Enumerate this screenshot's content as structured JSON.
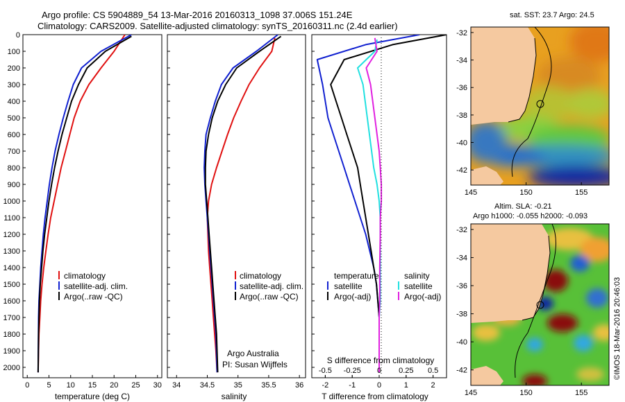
{
  "header": {
    "line1": "Argo profile: CS 5904889_54 13-Mar-2016 20160313_1098 37.006S 151.24E",
    "line2": "Climatology: CARS2009. Satellite-adjusted climatology: synTS_20160311.nc (2.4d earlier)"
  },
  "depth_axis": {
    "ticks": [
      "0",
      "100",
      "200",
      "300",
      "400",
      "500",
      "600",
      "700",
      "800",
      "900",
      "1000",
      "1100",
      "1200",
      "1300",
      "1400",
      "1500",
      "1600",
      "1700",
      "1800",
      "1900",
      "2000"
    ]
  },
  "credit": "©IMOS 18-Mar-2016 20:46:03",
  "panels": {
    "temp": {
      "xlabel": "temperature (deg C)",
      "xticks": [
        "0",
        "5",
        "10",
        "15",
        "20",
        "25",
        "30"
      ],
      "legend": [
        "climatology",
        "satellite-adj. clim.",
        "Argo(..raw -QC)"
      ]
    },
    "sal": {
      "xlabel": "salinity",
      "xticks": [
        "34",
        "34.5",
        "35",
        "35.5",
        "36"
      ],
      "legend": [
        "climatology",
        "satellite-adj. clim.",
        "Argo(..raw -QC)"
      ],
      "note1": "Argo Australia",
      "note2": "PI: Susan Wijffels"
    },
    "diff": {
      "xlabel": "T difference from climatology",
      "xlabel_top": "S difference from climatology",
      "xticks": [
        "-2",
        "-1",
        "0",
        "1",
        "2"
      ],
      "sticks": [
        "-0.5",
        "-0.25",
        "0",
        "0.25",
        "0.5"
      ],
      "legend_head_t": "temperature",
      "legend_head_s": "salinity",
      "legend_t": [
        "satellite",
        "Argo(-adj)"
      ],
      "legend_s": [
        "satellite",
        "Argo(-adj)"
      ]
    },
    "sst_map": {
      "title": "sat. SST: 23.7 Argo: 24.5",
      "yticks": [
        "-32",
        "-34",
        "-36",
        "-38",
        "-40",
        "-42"
      ],
      "xticks": [
        "145",
        "150",
        "155"
      ]
    },
    "sla_map": {
      "title1": "Altim. SLA: -0.21",
      "title2": "Argo h1000: -0.055 h2000: -0.093",
      "yticks": [
        "-32",
        "-34",
        "-36",
        "-38",
        "-40",
        "-42"
      ],
      "xticks": [
        "145",
        "150",
        "155"
      ]
    }
  },
  "colors": {
    "climatology": "#e01010",
    "satellite": "#1020d0",
    "argo": "#000000",
    "s_satellite": "#20e0e0",
    "s_argo": "#e020e0",
    "land": "#f5c9a0"
  },
  "chart_data": [
    {
      "type": "line",
      "title": "",
      "xlabel": "temperature (deg C)",
      "ylabel": "",
      "xlim": [
        -1,
        31
      ],
      "ylim": [
        2050,
        0
      ],
      "series": [
        {
          "name": "climatology",
          "x": [
            22.5,
            20,
            17,
            14.2,
            12.2,
            10.8,
            9.8,
            8.8,
            7.8,
            7.0,
            6.2,
            5.4,
            4.8,
            4.3,
            3.8,
            3.4,
            3.1,
            2.9,
            2.7,
            2.6,
            2.5
          ],
          "y": [
            0,
            100,
            200,
            300,
            400,
            500,
            600,
            700,
            800,
            900,
            1000,
            1100,
            1200,
            1300,
            1400,
            1500,
            1600,
            1700,
            1800,
            1900,
            2030
          ]
        },
        {
          "name": "satellite-adj. clim.",
          "x": [
            24,
            17,
            12.5,
            10.6,
            9.4,
            8.3,
            7.3,
            6.4,
            5.7,
            5.1,
            4.6,
            4.1,
            3.7,
            3.4,
            3.1,
            2.9,
            2.7,
            2.6,
            2.5
          ],
          "y": [
            0,
            100,
            200,
            300,
            400,
            500,
            600,
            700,
            800,
            900,
            1000,
            1100,
            1200,
            1300,
            1400,
            1500,
            1600,
            1700,
            2030
          ]
        },
        {
          "name": "Argo(..raw -QC)",
          "x": [
            24,
            18,
            13.8,
            11.8,
            10.2,
            9.1,
            8.0,
            7.1,
            6.3,
            5.6,
            5.0,
            4.5,
            4.0,
            3.6,
            3.3,
            3.0,
            2.8,
            2.7,
            2.6,
            2.5
          ],
          "y": [
            10,
            100,
            200,
            300,
            400,
            500,
            600,
            700,
            800,
            900,
            1000,
            1100,
            1200,
            1300,
            1400,
            1500,
            1600,
            1700,
            1800,
            2030
          ]
        }
      ]
    },
    {
      "type": "line",
      "title": "",
      "xlabel": "salinity",
      "ylabel": "",
      "xlim": [
        33.85,
        36.1
      ],
      "ylim": [
        2050,
        0
      ],
      "series": [
        {
          "name": "climatology",
          "x": [
            35.6,
            35.55,
            35.35,
            35.18,
            35.05,
            34.93,
            34.83,
            34.74,
            34.65,
            34.57,
            34.52,
            34.5,
            34.51,
            34.52,
            34.54,
            34.56,
            34.58,
            34.6,
            34.62,
            34.64,
            34.66
          ],
          "y": [
            20,
            100,
            200,
            300,
            400,
            500,
            600,
            700,
            800,
            900,
            1000,
            1100,
            1200,
            1300,
            1400,
            1500,
            1600,
            1700,
            1800,
            1900,
            2030
          ]
        },
        {
          "name": "satellite-adj. clim.",
          "x": [
            35.65,
            35.3,
            34.92,
            34.73,
            34.63,
            34.55,
            34.48,
            34.46,
            34.45,
            34.46,
            34.48,
            34.5,
            34.52,
            34.54,
            34.56,
            34.58,
            34.6,
            34.62,
            34.64,
            34.66
          ],
          "y": [
            0,
            100,
            200,
            300,
            400,
            500,
            600,
            700,
            800,
            900,
            1000,
            1100,
            1200,
            1300,
            1400,
            1500,
            1600,
            1700,
            1800,
            2030
          ]
        },
        {
          "name": "Argo(..raw -QC)",
          "x": [
            35.7,
            35.35,
            34.98,
            34.8,
            34.67,
            34.58,
            34.52,
            34.48,
            34.47,
            34.47,
            34.49,
            34.51,
            34.53,
            34.55,
            34.57,
            34.59,
            34.61,
            34.63,
            34.65,
            34.67
          ],
          "y": [
            10,
            100,
            200,
            300,
            400,
            500,
            600,
            700,
            800,
            900,
            1000,
            1100,
            1200,
            1300,
            1400,
            1500,
            1600,
            1700,
            1800,
            2030
          ]
        }
      ]
    },
    {
      "type": "line",
      "title": "",
      "xlabel": "T difference from climatology",
      "ylabel": "",
      "xlim": [
        -2.5,
        2.5
      ],
      "ylim": [
        2050,
        0
      ],
      "series": [
        {
          "name": "satellite",
          "x": [
            1.5,
            -0.5,
            -2.3,
            -2.1,
            -2.0,
            -1.9,
            -1.7,
            -1.5,
            -1.3,
            -1.1,
            -0.9,
            -0.7,
            -0.5,
            -0.35,
            -0.2,
            -0.1,
            -0.05,
            0,
            0
          ],
          "y": [
            0,
            60,
            150,
            300,
            400,
            500,
            600,
            700,
            800,
            900,
            1000,
            1100,
            1200,
            1300,
            1400,
            1500,
            1600,
            1700,
            2030
          ]
        },
        {
          "name": "Argo(-adj)",
          "x": [
            2.5,
            0.5,
            -1.3,
            -1.8,
            -1.6,
            -1.4,
            -1.2,
            -1.0,
            -0.8,
            -0.7,
            -0.6,
            -0.5,
            -0.4,
            -0.3,
            -0.2,
            -0.1,
            -0.05,
            0,
            0
          ],
          "y": [
            0,
            60,
            150,
            300,
            400,
            500,
            600,
            700,
            800,
            900,
            1000,
            1100,
            1200,
            1300,
            1400,
            1500,
            1600,
            1700,
            2030
          ]
        }
      ]
    },
    {
      "type": "line",
      "title": "",
      "xlabel": "S difference from climatology",
      "ylabel": "",
      "xlim": [
        -0.625,
        0.625
      ],
      "ylim": [
        2050,
        0
      ],
      "series": [
        {
          "name": "satellite",
          "x": [
            -0.02,
            -0.04,
            -0.2,
            -0.15,
            -0.13,
            -0.11,
            -0.09,
            -0.07,
            -0.05,
            -0.02,
            0,
            0.01,
            0.01,
            0.01,
            0.01,
            0.01,
            0,
            0
          ],
          "y": [
            30,
            100,
            200,
            300,
            400,
            500,
            600,
            700,
            800,
            900,
            1000,
            1100,
            1200,
            1400,
            1500,
            1600,
            1700,
            2030
          ]
        },
        {
          "name": "Argo(-adj)",
          "x": [
            -0.04,
            -0.02,
            -0.12,
            -0.08,
            -0.06,
            -0.04,
            -0.02,
            0,
            0.01,
            0.02,
            0.02,
            0.01,
            0.01,
            0.005,
            0.005,
            0,
            0
          ],
          "y": [
            20,
            100,
            200,
            300,
            400,
            500,
            600,
            700,
            800,
            900,
            1000,
            1100,
            1200,
            1400,
            1600,
            1700,
            2030
          ]
        }
      ]
    }
  ]
}
